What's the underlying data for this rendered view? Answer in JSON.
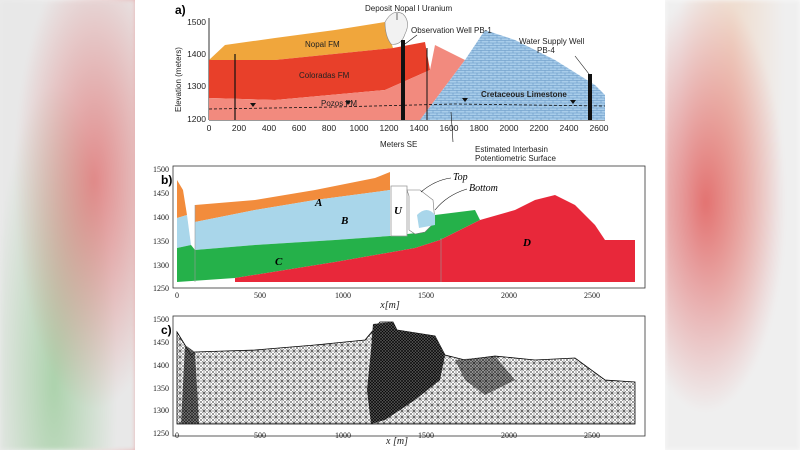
{
  "panel_a": {
    "label": "a)",
    "y_axis_title": "Elevation (meters)",
    "x_axis_title": "Meters SE",
    "y_ticks": [
      "1500",
      "1400",
      "1300",
      "1200"
    ],
    "x_ticks": [
      "0",
      "200",
      "400",
      "600",
      "800",
      "1000",
      "1200",
      "1400",
      "1600",
      "1800",
      "2000",
      "2200",
      "2400",
      "2600"
    ],
    "deposit_label": "Deposit Nopal I Uranium",
    "observation_well": "Observation Well PB-1",
    "water_supply_well_line1": "Water Supply Well",
    "water_supply_well_line2": "PB-4",
    "formation_nopal": "Nopal FM",
    "formation_coloradas": "Coloradas FM",
    "formation_pozos": "Pozos FM",
    "formation_cretaceous": "Cretaceous Limestone",
    "potentiometric_line1": "Estimated Interbasin",
    "potentiometric_line2": "Potentiometric Surface",
    "colors": {
      "nopal": "#f0a63c",
      "coloradas": "#e8402a",
      "pozos": "#f28a7e",
      "limestone": "#a9cdea"
    }
  },
  "panel_b": {
    "label": "b)",
    "y_ticks": [
      "1500",
      "1450",
      "1400",
      "1350",
      "1300",
      "1250"
    ],
    "x_ticks": [
      "0",
      "500",
      "1000",
      "1500",
      "2000",
      "2500"
    ],
    "x_axis_title": "x[m]",
    "zone_a": "A",
    "zone_b": "B",
    "zone_c": "C",
    "zone_d": "D",
    "zone_u": "U",
    "top_label": "Top",
    "bottom_label": "Bottom",
    "colors": {
      "a": "#f28c3c",
      "b": "#a9d6ea",
      "c": "#25b14a",
      "d": "#e8283a"
    }
  },
  "panel_c": {
    "label": "c)",
    "y_ticks": [
      "1500",
      "1450",
      "1400",
      "1350",
      "1300",
      "1250"
    ],
    "x_ticks": [
      "0",
      "500",
      "1000",
      "1500",
      "2000",
      "2500"
    ],
    "x_axis_title": "x [m]"
  }
}
